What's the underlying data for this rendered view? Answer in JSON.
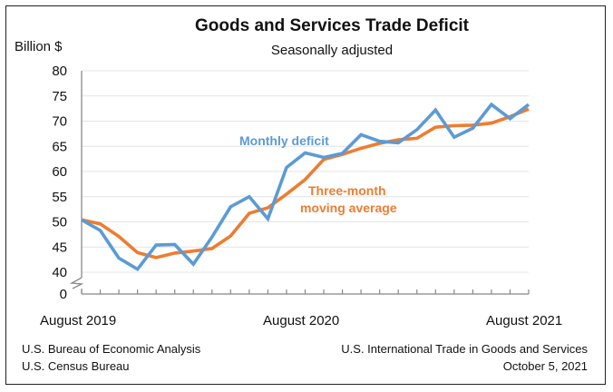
{
  "chart_data": {
    "type": "line",
    "title": "Goods and Services Trade Deficit",
    "subtitle": "Seasonally adjusted",
    "ylabel": "Billion $",
    "xlabel": "",
    "y_ticks": [
      0,
      40,
      45,
      50,
      55,
      60,
      65,
      70,
      75,
      80
    ],
    "ylim": [
      40,
      80
    ],
    "axis_break": "between 0 and 40",
    "grid": "horizontal",
    "x_tick_labels": [
      "August 2019",
      "August 2020",
      "August 2021"
    ],
    "x": [
      "2019-08",
      "2019-09",
      "2019-10",
      "2019-11",
      "2019-12",
      "2020-01",
      "2020-02",
      "2020-03",
      "2020-04",
      "2020-05",
      "2020-06",
      "2020-07",
      "2020-08",
      "2020-09",
      "2020-10",
      "2020-11",
      "2020-12",
      "2021-01",
      "2021-02",
      "2021-03",
      "2021-04",
      "2021-05",
      "2021-06",
      "2021-07",
      "2021-08"
    ],
    "series": [
      {
        "name": "Monthly deficit",
        "color": "#5b9bd5",
        "values": [
          50.4,
          48.3,
          42.8,
          40.6,
          45.4,
          45.5,
          41.6,
          47.0,
          53.0,
          55.0,
          50.6,
          60.8,
          63.7,
          62.8,
          63.6,
          67.3,
          66.0,
          65.7,
          68.3,
          72.2,
          66.8,
          68.6,
          73.3,
          70.5,
          73.3
        ]
      },
      {
        "name": "Three-month moving average",
        "label_lines": [
          "Three-month",
          "moving average"
        ],
        "color": "#ed7d31",
        "values": [
          50.4,
          49.6,
          47.1,
          43.9,
          42.9,
          43.8,
          44.2,
          44.7,
          47.2,
          51.7,
          52.8,
          55.5,
          58.4,
          62.4,
          63.4,
          64.6,
          65.6,
          66.3,
          66.6,
          68.8,
          69.1,
          69.2,
          69.6,
          70.9,
          72.4
        ]
      }
    ]
  },
  "footer": {
    "source_1": "U.S. Bureau of Economic Analysis",
    "source_2": "U.S. Census Bureau",
    "release_title": "U.S. International Trade in Goods and Services",
    "release_date": "October 5, 2021"
  }
}
